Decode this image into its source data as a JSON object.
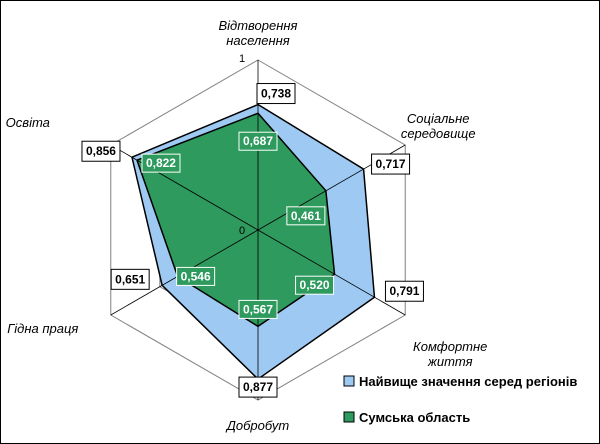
{
  "chart_data": {
    "type": "radar",
    "axes": [
      [
        "Відтворення",
        "населення"
      ],
      [
        "Соціальне",
        "середовище"
      ],
      [
        "Комфортне",
        "життя"
      ],
      [
        "Добробут"
      ],
      [
        "Гідна праця"
      ],
      [
        "Освіта"
      ]
    ],
    "range": [
      0,
      1
    ],
    "tick_labels": {
      "max": "1",
      "min": "0"
    },
    "series": [
      {
        "name": "Найвище значення серед регіонів",
        "values": [
          0.738,
          0.717,
          0.791,
          0.877,
          0.651,
          0.856
        ],
        "labels": [
          "0,738",
          "0,717",
          "0,791",
          "0,877",
          "0,651",
          "0,856"
        ],
        "color": "#9ec9f2"
      },
      {
        "name": "Сумська область",
        "values": [
          0.687,
          0.461,
          0.52,
          0.567,
          0.546,
          0.822
        ],
        "labels": [
          "0,687",
          "0,461",
          "0,520",
          "0,567",
          "0,546",
          "0,822"
        ],
        "color": "#2e9a5e"
      }
    ],
    "grid": true,
    "legend_position": "bottom-right"
  }
}
